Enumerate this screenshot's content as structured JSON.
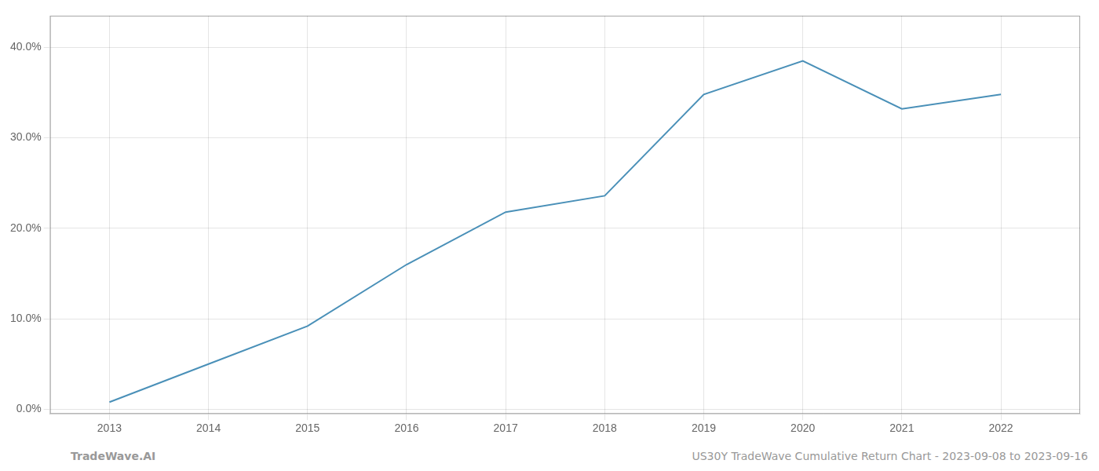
{
  "chart_data": {
    "type": "line",
    "x": [
      2013,
      2014,
      2015,
      2016,
      2017,
      2018,
      2019,
      2020,
      2021,
      2022
    ],
    "values": [
      0.008,
      0.05,
      0.092,
      0.16,
      0.218,
      0.236,
      0.348,
      0.385,
      0.332,
      0.348
    ],
    "color": "#4a90b8",
    "xlim": [
      2012.4,
      2022.8
    ],
    "xticks": [
      2013,
      2014,
      2015,
      2016,
      2017,
      2018,
      2019,
      2020,
      2021,
      2022
    ],
    "ylim": [
      -0.005,
      0.435
    ],
    "yticks": [
      {
        "value": 0.0,
        "label": "0.0%"
      },
      {
        "value": 0.1,
        "label": "10.0%"
      },
      {
        "value": 0.2,
        "label": "20.0%"
      },
      {
        "value": 0.3,
        "label": "30.0%"
      },
      {
        "value": 0.4,
        "label": "40.0%"
      }
    ],
    "grid": true,
    "annotations": [
      "TradeWave.AI",
      "US30Y TradeWave Cumulative Return Chart - 2023-09-08 to 2023-09-16"
    ]
  }
}
